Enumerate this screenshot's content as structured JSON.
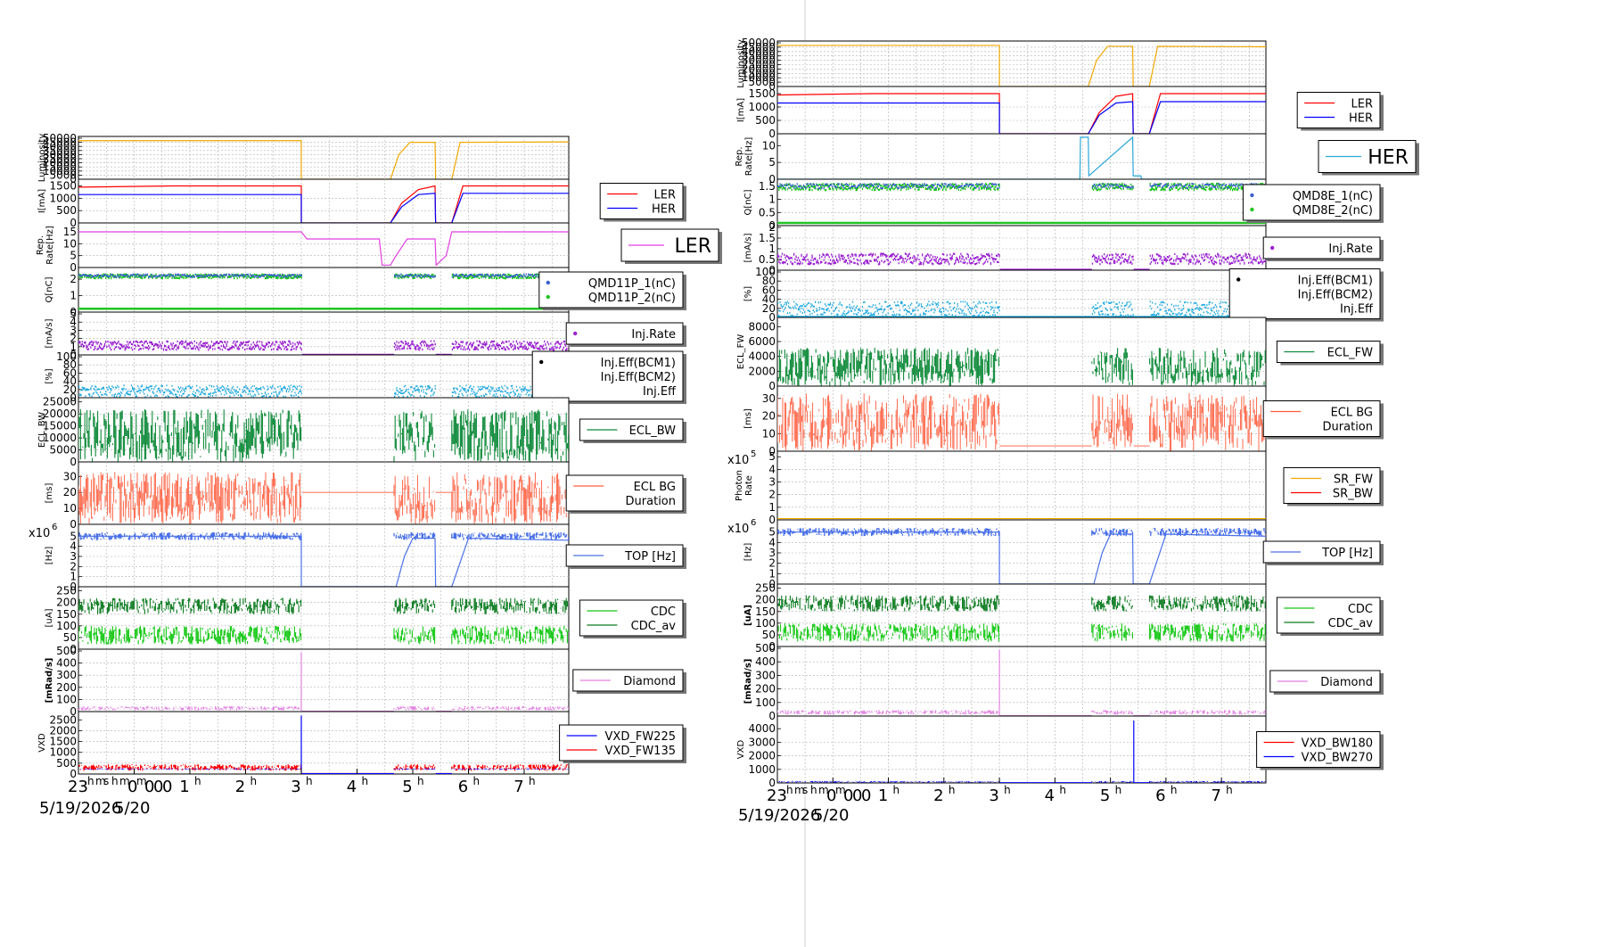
{
  "colors": {
    "luminosity": "#f0a800",
    "ler": "#ff0000",
    "her": "#0000ff",
    "rep_left": "#e040e0",
    "rep_right": "#2aa7d8",
    "qblue": "#3a5fd0",
    "qgreen": "#21c421",
    "inj": "#9a22d0",
    "eff": "#22aae0",
    "ecl_fw": "#0f8a3a",
    "ecl_bw": "#0f8a3a",
    "bgdur": "#ff5a3a",
    "sr_fw": "#f0a800",
    "sr_bw": "#ff0000",
    "top": "#4a70e8",
    "cdc": "#14c814",
    "cdc_av": "#0a7a1e",
    "diamond": "#e080e0",
    "vxd_red": "#ff0000",
    "vxd_blue": "#0000ff"
  },
  "time_axis": {
    "tick_labels": [
      "23",
      "0",
      "1",
      "2",
      "3",
      "4",
      "5",
      "6",
      "7"
    ],
    "overlap_marks": [
      "h",
      "m",
      "s",
      "h",
      "m",
      "0",
      "m",
      "0",
      "0"
    ],
    "unit": "h",
    "dates": [
      "5/19/2026",
      "5/20"
    ]
  },
  "left": {
    "panels": [
      {
        "id": "lum",
        "ylabel": "Luminosity",
        "ticks": [
          "50000",
          "45000",
          "40000",
          "35000",
          "30000",
          "25000",
          "20000",
          "15000",
          "10000",
          "5000",
          "0"
        ],
        "ymax": 50000,
        "legend": []
      },
      {
        "id": "cur",
        "ylabel": "I[mA]",
        "ticks": [
          "1500",
          "1000",
          "500",
          "0"
        ],
        "ymax": 1700,
        "legend": [
          {
            "label": "LER",
            "kind": "line",
            "color": "#ff0000"
          },
          {
            "label": "HER",
            "kind": "line",
            "color": "#0000ff"
          }
        ]
      },
      {
        "id": "rep",
        "ylabel": "Rep. Rate[Hz]",
        "ticks": [
          "15",
          "10",
          "5",
          "0"
        ],
        "ymax": 18,
        "legend": [
          {
            "label": "LER",
            "kind": "line",
            "color": "#e040e0",
            "big": true
          }
        ]
      },
      {
        "id": "q",
        "ylabel": "Q[nC]",
        "ticks": [
          "2",
          "1",
          "0"
        ],
        "ymax": 2.6,
        "legend": [
          {
            "label": "QMD11P_1(nC)",
            "kind": "dot",
            "color": "#3a5fd0"
          },
          {
            "label": "QMD11P_2(nC)",
            "kind": "dot",
            "color": "#21c421"
          }
        ]
      },
      {
        "id": "inj",
        "ylabel": "[mA/s]",
        "ticks": [
          "5",
          "4",
          "3",
          "2",
          "1",
          "0"
        ],
        "ymax": 5,
        "legend": [
          {
            "label": "Inj.Rate",
            "kind": "dot",
            "color": "#9a22d0"
          }
        ]
      },
      {
        "id": "eff",
        "ylabel": "[%]",
        "ticks": [
          "100",
          "80",
          "60",
          "40",
          "20",
          "0"
        ],
        "ymax": 100,
        "legend": [
          {
            "label": "Inj.Eff(BCM1)",
            "kind": "dot",
            "color": "#000000"
          },
          {
            "label": "Inj.Eff(BCM2)",
            "kind": "none",
            "color": "#22aae0"
          },
          {
            "label": "Inj.Eff",
            "kind": "none",
            "color": "#22aae0"
          }
        ]
      },
      {
        "id": "ecl",
        "ylabel": "ECL_BW",
        "ticks": [
          "25000",
          "20000",
          "15000",
          "10000",
          "5000",
          "0"
        ],
        "ymax": 26000,
        "legend": [
          {
            "label": "ECL_BW",
            "kind": "line",
            "color": "#0f8a3a"
          }
        ]
      },
      {
        "id": "bgd",
        "ylabel": "[ms]",
        "ticks": [
          "30",
          "20",
          "10",
          "0"
        ],
        "ymax": 38,
        "legend": [
          {
            "label": "ECL BG",
            "kind": "line",
            "color": "#ff5a3a"
          },
          {
            "label": "Duration",
            "kind": "none",
            "color": "#ff5a3a"
          }
        ]
      },
      {
        "id": "top",
        "ylabel": "[Hz]",
        "ticks": [
          "5",
          "4",
          "3",
          "2",
          "1",
          "0"
        ],
        "ymax": 6,
        "exp": "x10",
        "exp_pow": "6",
        "legend": [
          {
            "label": "TOP [Hz]",
            "kind": "line",
            "color": "#4a70e8"
          }
        ]
      },
      {
        "id": "cdc",
        "ylabel": "[uA]",
        "ticks": [
          "250",
          "200",
          "150",
          "100",
          "50",
          "0"
        ],
        "ymax": 260,
        "legend": [
          {
            "label": "CDC",
            "kind": "line",
            "color": "#14c814"
          },
          {
            "label": "CDC_av",
            "kind": "line",
            "color": "#0a7a1e"
          }
        ]
      },
      {
        "id": "dia",
        "ylabel": "[mRad/s]",
        "ticks": [
          "500",
          "400",
          "300",
          "200",
          "100",
          "0"
        ],
        "ymax": 500,
        "legend": [
          {
            "label": "Diamond",
            "kind": "line",
            "color": "#e080e0"
          }
        ]
      },
      {
        "id": "vxd",
        "ylabel": "VXD",
        "ticks": [
          "2500",
          "2000",
          "1500",
          "1000",
          "500",
          "0"
        ],
        "ymax": 2800,
        "legend": [
          {
            "label": "VXD_FW225",
            "kind": "line",
            "color": "#0000ff"
          },
          {
            "label": "VXD_FW135",
            "kind": "line",
            "color": "#ff0000"
          }
        ]
      }
    ]
  },
  "right": {
    "panels": [
      {
        "id": "lum",
        "ylabel": "Luminosity",
        "ticks": [
          "50000",
          "45000",
          "40000",
          "35000",
          "30000",
          "25000",
          "20000",
          "15000",
          "10000",
          "5000",
          "0"
        ],
        "ymax": 50000,
        "legend": []
      },
      {
        "id": "cur",
        "ylabel": "I[mA]",
        "ticks": [
          "1500",
          "1000",
          "500",
          "0"
        ],
        "ymax": 1700,
        "legend": [
          {
            "label": "LER",
            "kind": "line",
            "color": "#ff0000"
          },
          {
            "label": "HER",
            "kind": "line",
            "color": "#0000ff"
          }
        ]
      },
      {
        "id": "rep",
        "ylabel": "Rep. Rate[Hz]",
        "ticks": [
          "10",
          "5",
          "0"
        ],
        "ymax": 13,
        "legend": [
          {
            "label": "HER",
            "kind": "line",
            "color": "#2aa7d8",
            "big": true
          }
        ]
      },
      {
        "id": "q",
        "ylabel": "Q[nC]",
        "ticks": [
          "1.5",
          "1",
          "0.5",
          "0"
        ],
        "ymax": 1.7,
        "legend": [
          {
            "label": "QMD8E_1(nC)",
            "kind": "dot",
            "color": "#3a5fd0"
          },
          {
            "label": "QMD8E_2(nC)",
            "kind": "dot",
            "color": "#21c421"
          }
        ]
      },
      {
        "id": "inj",
        "ylabel": "[mA/s]",
        "ticks": [
          "2",
          "1.5",
          "1",
          "0.5",
          "0"
        ],
        "ymax": 2,
        "legend": [
          {
            "label": "Inj.Rate",
            "kind": "dot",
            "color": "#9a22d0"
          }
        ]
      },
      {
        "id": "eff",
        "ylabel": "[%]",
        "ticks": [
          "100",
          "80",
          "60",
          "40",
          "20",
          "0"
        ],
        "ymax": 100,
        "legend": [
          {
            "label": "Inj.Eff(BCM1)",
            "kind": "dot",
            "color": "#000000"
          },
          {
            "label": "Inj.Eff(BCM2)",
            "kind": "none",
            "color": "#22aae0"
          },
          {
            "label": "Inj.Eff",
            "kind": "none",
            "color": "#22aae0"
          }
        ]
      },
      {
        "id": "ecl",
        "ylabel": "ECL_FW",
        "ticks": [
          "8000",
          "6000",
          "4000",
          "2000",
          "0"
        ],
        "ymax": 9000,
        "legend": [
          {
            "label": "ECL_FW",
            "kind": "line",
            "color": "#0f8a3a"
          }
        ]
      },
      {
        "id": "bgd",
        "ylabel": "[ms]",
        "ticks": [
          "30",
          "20",
          "10",
          "0"
        ],
        "ymax": 36,
        "legend": [
          {
            "label": "ECL BG",
            "kind": "line",
            "color": "#ff5a3a"
          },
          {
            "label": "Duration",
            "kind": "none",
            "color": "#ff5a3a"
          }
        ]
      },
      {
        "id": "sr",
        "ylabel": "Photon Rate",
        "ticks": [
          "5",
          "4",
          "3",
          "2",
          "1",
          "0"
        ],
        "ymax": 5.3,
        "exp": "x10",
        "exp_pow": "5",
        "legend": [
          {
            "label": "SR_FW",
            "kind": "line",
            "color": "#f0a800"
          },
          {
            "label": "SR_BW",
            "kind": "line",
            "color": "#ff0000"
          }
        ]
      },
      {
        "id": "top",
        "ylabel": "[Hz]",
        "ticks": [
          "5",
          "4",
          "3",
          "2",
          "1",
          "0"
        ],
        "ymax": 6,
        "exp": "x10",
        "exp_pow": "6",
        "legend": [
          {
            "label": "TOP [Hz]",
            "kind": "line",
            "color": "#4a70e8"
          }
        ]
      },
      {
        "id": "cdc",
        "ylabel": "[uA]",
        "ticks": [
          "250",
          "200",
          "150",
          "100",
          "50",
          "0"
        ],
        "ymax": 260,
        "legend": [
          {
            "label": "CDC",
            "kind": "line",
            "color": "#14c814"
          },
          {
            "label": "CDC_av",
            "kind": "line",
            "color": "#0a7a1e"
          }
        ]
      },
      {
        "id": "dia",
        "ylabel": "[mRad/s]",
        "ticks": [
          "500",
          "400",
          "300",
          "200",
          "100",
          "0"
        ],
        "ymax": 500,
        "legend": [
          {
            "label": "Diamond",
            "kind": "line",
            "color": "#e080e0"
          }
        ]
      },
      {
        "id": "vxd",
        "ylabel": "VXD",
        "ticks": [
          "4000",
          "3000",
          "2000",
          "1000",
          "0"
        ],
        "ymax": 4800,
        "legend": [
          {
            "label": "VXD_BW180",
            "kind": "line",
            "color": "#ff0000"
          },
          {
            "label": "VXD_BW270",
            "kind": "line",
            "color": "#0000ff"
          }
        ]
      }
    ]
  },
  "chart_data": [
    {
      "type": "line",
      "side": "left",
      "x_range_hours": [
        -1,
        7.8
      ],
      "series": [
        {
          "panel": "lum",
          "x": [
            -1,
            3,
            3.0,
            4.6,
            4.75,
            4.95,
            5.4,
            5.41,
            5.7,
            5.85,
            7.8
          ],
          "y": [
            47000,
            47000,
            0,
            0,
            30000,
            45000,
            45000,
            0,
            0,
            45000,
            45500
          ]
        },
        {
          "panel": "cur",
          "name": "LER",
          "x": [
            -1,
            0.7,
            3,
            3.0,
            4.6,
            4.8,
            5.1,
            5.4,
            5.41,
            5.7,
            5.9,
            7.8
          ],
          "y": [
            1450,
            1500,
            1500,
            0,
            0,
            800,
            1350,
            1500,
            0,
            0,
            1500,
            1500
          ]
        },
        {
          "panel": "cur",
          "name": "HER",
          "x": [
            -1,
            3,
            3.0,
            4.6,
            4.8,
            5.1,
            5.4,
            5.41,
            5.7,
            5.9,
            7.8
          ],
          "y": [
            1150,
            1150,
            0,
            0,
            650,
            1150,
            1200,
            0,
            0,
            1200,
            1200
          ]
        },
        {
          "panel": "rep",
          "x": [
            -1,
            3,
            3.1,
            4.4,
            4.45,
            4.6,
            4.7,
            4.9,
            5.4,
            5.42,
            5.6,
            5.7,
            7.8
          ],
          "y": [
            15,
            15,
            12,
            12,
            1,
            1,
            5,
            12,
            12,
            1,
            5,
            15,
            15
          ]
        },
        {
          "panel": "top",
          "x": [
            -1,
            3,
            3.0,
            4.7,
            4.85,
            5.0,
            5.4,
            5.41,
            5.7,
            6.0,
            7.8
          ],
          "y": [
            5.0,
            5.0,
            0,
            0,
            3.0,
            4.8,
            4.8,
            0,
            0,
            4.8,
            4.6
          ]
        }
      ]
    },
    {
      "type": "line",
      "side": "right",
      "x_range_hours": [
        -1,
        7.8
      ],
      "series": [
        {
          "panel": "lum",
          "x": [
            -1,
            3,
            3.0,
            4.6,
            4.75,
            4.95,
            5.4,
            5.41,
            5.7,
            5.85,
            7.8
          ],
          "y": [
            47000,
            47000,
            0,
            0,
            30000,
            46000,
            46000,
            0,
            0,
            46000,
            45500
          ]
        },
        {
          "panel": "cur",
          "name": "LER",
          "x": [
            -1,
            0.7,
            3,
            3.0,
            4.6,
            4.8,
            5.1,
            5.4,
            5.41,
            5.7,
            5.9,
            7.8
          ],
          "y": [
            1450,
            1500,
            1500,
            0,
            0,
            800,
            1400,
            1500,
            0,
            0,
            1500,
            1500
          ]
        },
        {
          "panel": "cur",
          "name": "HER",
          "x": [
            -1,
            3,
            3.0,
            4.6,
            4.8,
            5.1,
            5.4,
            5.41,
            5.7,
            5.9,
            7.8
          ],
          "y": [
            1150,
            1150,
            0,
            0,
            700,
            1150,
            1200,
            0,
            0,
            1200,
            1200
          ]
        },
        {
          "panel": "rep",
          "x": [
            -1,
            4.45,
            4.46,
            4.6,
            4.61,
            5.4,
            5.41,
            5.55,
            5.56,
            7.8
          ],
          "y": [
            0,
            0,
            12.5,
            12.5,
            1,
            12.5,
            1,
            1,
            0,
            0
          ]
        },
        {
          "panel": "top",
          "x": [
            -1,
            3,
            3.0,
            4.7,
            4.85,
            5.0,
            5.4,
            5.41,
            5.7,
            6.0,
            7.8
          ],
          "y": [
            5.0,
            5.0,
            0,
            0,
            3.0,
            4.8,
            4.8,
            0,
            0,
            4.8,
            4.6
          ]
        },
        {
          "panel": "sr",
          "x": [
            -1,
            7.8
          ],
          "y": [
            0.1,
            0.1
          ]
        }
      ]
    }
  ]
}
